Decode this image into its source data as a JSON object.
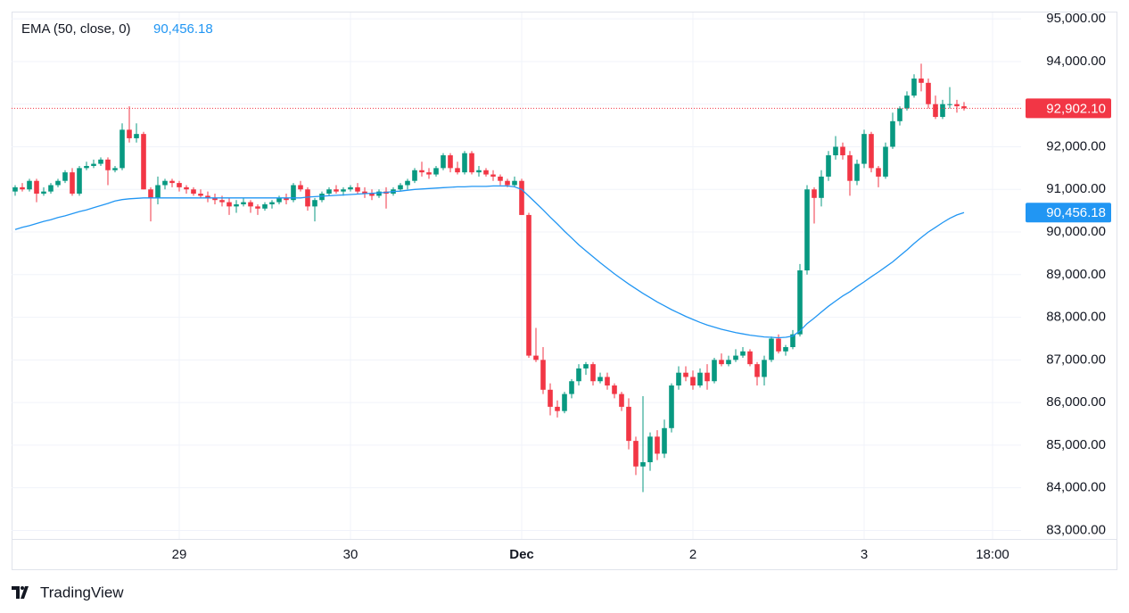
{
  "chart_data": {
    "type": "candlestick",
    "up_color": "#089981",
    "down_color": "#f23645",
    "ylim": [
      82800,
      95150
    ],
    "yticks": [
      {
        "value": 83000,
        "label": "83,000.00"
      },
      {
        "value": 84000,
        "label": "84,000.00"
      },
      {
        "value": 85000,
        "label": "85,000.00"
      },
      {
        "value": 86000,
        "label": "86,000.00"
      },
      {
        "value": 87000,
        "label": "87,000.00"
      },
      {
        "value": 88000,
        "label": "88,000.00"
      },
      {
        "value": 89000,
        "label": "89,000.00"
      },
      {
        "value": 90000,
        "label": "90,000.00"
      },
      {
        "value": 91000,
        "label": "91,000.00"
      },
      {
        "value": 92000,
        "label": "92,000.00"
      },
      {
        "value": 93000,
        "label": "93,000.00"
      },
      {
        "value": 94000,
        "label": "94,000.00"
      },
      {
        "value": 95000,
        "label": "95,000.00"
      }
    ],
    "grid": true,
    "categories": [
      null,
      null,
      null,
      null,
      null,
      null,
      null,
      null,
      null,
      null,
      null,
      null,
      null,
      null,
      null,
      null,
      null,
      null,
      null,
      null,
      null,
      null,
      null,
      "29",
      null,
      null,
      null,
      null,
      null,
      null,
      null,
      null,
      null,
      null,
      null,
      null,
      null,
      null,
      null,
      null,
      null,
      null,
      null,
      null,
      null,
      null,
      null,
      "30",
      null,
      null,
      null,
      null,
      null,
      null,
      null,
      null,
      null,
      null,
      null,
      null,
      null,
      null,
      null,
      null,
      null,
      null,
      null,
      null,
      null,
      null,
      null,
      "Dec",
      null,
      null,
      null,
      null,
      null,
      null,
      null,
      null,
      null,
      null,
      null,
      null,
      null,
      null,
      null,
      null,
      null,
      null,
      null,
      null,
      null,
      null,
      null,
      "2",
      null,
      null,
      null,
      null,
      null,
      null,
      null,
      null,
      null,
      null,
      null,
      null,
      null,
      null,
      null,
      null,
      null,
      null,
      null,
      null,
      null,
      null,
      null,
      "3",
      null,
      null,
      null,
      null,
      null,
      null,
      null,
      null,
      null,
      null,
      null,
      null,
      null,
      null,
      null,
      null,
      null,
      "18:00",
      null,
      null,
      null
    ],
    "ohlc": [
      [
        90950,
        91100,
        90850,
        91050
      ],
      [
        91050,
        91150,
        90950,
        91000
      ],
      [
        91000,
        91250,
        90950,
        91200
      ],
      [
        91200,
        91250,
        90700,
        90900
      ],
      [
        90900,
        91050,
        90850,
        90950
      ],
      [
        90950,
        91150,
        90900,
        91100
      ],
      [
        91100,
        91250,
        91050,
        91200
      ],
      [
        91200,
        91450,
        91150,
        91400
      ],
      [
        91400,
        91500,
        90850,
        90900
      ],
      [
        90900,
        91550,
        90850,
        91500
      ],
      [
        91500,
        91650,
        91450,
        91550
      ],
      [
        91550,
        91700,
        91500,
        91600
      ],
      [
        91600,
        91750,
        91550,
        91700
      ],
      [
        91700,
        91750,
        91100,
        91450
      ],
      [
        91450,
        91550,
        91400,
        91500
      ],
      [
        91500,
        92550,
        91450,
        92400
      ],
      [
        92400,
        92950,
        92100,
        92200
      ],
      [
        92200,
        92550,
        92100,
        92300
      ],
      [
        92300,
        92350,
        91000,
        91000
      ],
      [
        91000,
        91050,
        90250,
        90800
      ],
      [
        90800,
        91300,
        90650,
        91100
      ],
      [
        91100,
        91250,
        91000,
        91200
      ],
      [
        91200,
        91250,
        91050,
        91150
      ],
      [
        91150,
        91200,
        90950,
        91050
      ],
      [
        91050,
        91100,
        90900,
        91000
      ],
      [
        91000,
        91050,
        90850,
        90900
      ],
      [
        90900,
        91000,
        90800,
        90850
      ],
      [
        90850,
        90950,
        90700,
        90800
      ],
      [
        90800,
        90900,
        90650,
        90750
      ],
      [
        90750,
        90850,
        90600,
        90700
      ],
      [
        90700,
        90800,
        90400,
        90600
      ],
      [
        90600,
        90750,
        90450,
        90650
      ],
      [
        90650,
        90800,
        90600,
        90700
      ],
      [
        90700,
        90750,
        90450,
        90600
      ],
      [
        90600,
        90650,
        90400,
        90550
      ],
      [
        90550,
        90700,
        90500,
        90650
      ],
      [
        90650,
        90750,
        90550,
        90700
      ],
      [
        90700,
        90850,
        90650,
        90800
      ],
      [
        90800,
        90900,
        90650,
        90750
      ],
      [
        90750,
        91150,
        90700,
        91100
      ],
      [
        91100,
        91200,
        90950,
        91000
      ],
      [
        91000,
        91050,
        90500,
        90600
      ],
      [
        90600,
        90800,
        90250,
        90750
      ],
      [
        90750,
        90950,
        90700,
        90900
      ],
      [
        90900,
        91050,
        90850,
        91000
      ],
      [
        91000,
        91100,
        90900,
        90950
      ],
      [
        90950,
        91050,
        90850,
        91000
      ],
      [
        91000,
        91100,
        90950,
        91050
      ],
      [
        91050,
        91150,
        90900,
        90950
      ],
      [
        90950,
        91050,
        90800,
        90900
      ],
      [
        90900,
        91000,
        90750,
        90850
      ],
      [
        90850,
        91000,
        90800,
        90950
      ],
      [
        90950,
        91050,
        90550,
        90900
      ],
      [
        90900,
        91050,
        90850,
        91000
      ],
      [
        91000,
        91150,
        90950,
        91100
      ],
      [
        91100,
        91250,
        91000,
        91200
      ],
      [
        91200,
        91500,
        91150,
        91450
      ],
      [
        91450,
        91650,
        91300,
        91400
      ],
      [
        91400,
        91500,
        91250,
        91350
      ],
      [
        91350,
        91550,
        91300,
        91500
      ],
      [
        91500,
        91850,
        91450,
        91800
      ],
      [
        91800,
        91850,
        91400,
        91500
      ],
      [
        91500,
        91650,
        91350,
        91400
      ],
      [
        91400,
        91900,
        91350,
        91850
      ],
      [
        91850,
        91900,
        91350,
        91400
      ],
      [
        91400,
        91550,
        91300,
        91450
      ],
      [
        91450,
        91500,
        91300,
        91350
      ],
      [
        91350,
        91450,
        91200,
        91300
      ],
      [
        91300,
        91350,
        91100,
        91200
      ],
      [
        91200,
        91250,
        91050,
        91100
      ],
      [
        91100,
        91300,
        91050,
        91200
      ],
      [
        91200,
        91250,
        90400,
        90400
      ],
      [
        90400,
        90450,
        87050,
        87100
      ],
      [
        87100,
        87750,
        86950,
        87000
      ],
      [
        87000,
        87300,
        86200,
        86300
      ],
      [
        86300,
        86450,
        85700,
        85900
      ],
      [
        85900,
        86050,
        85650,
        85800
      ],
      [
        85800,
        86250,
        85750,
        86200
      ],
      [
        86200,
        86550,
        86100,
        86500
      ],
      [
        86500,
        86900,
        86400,
        86800
      ],
      [
        86800,
        86950,
        86650,
        86900
      ],
      [
        86900,
        86950,
        86400,
        86500
      ],
      [
        86500,
        86700,
        86450,
        86600
      ],
      [
        86600,
        86700,
        86300,
        86400
      ],
      [
        86400,
        86450,
        86100,
        86200
      ],
      [
        86200,
        86250,
        85800,
        85900
      ],
      [
        85900,
        86100,
        84900,
        85100
      ],
      [
        85100,
        85200,
        84300,
        84500
      ],
      [
        84500,
        86150,
        83900,
        84600
      ],
      [
        84600,
        85300,
        84400,
        85200
      ],
      [
        85200,
        85350,
        84650,
        84800
      ],
      [
        84800,
        85600,
        84700,
        85400
      ],
      [
        85400,
        86450,
        85300,
        86400
      ],
      [
        86400,
        86850,
        86300,
        86700
      ],
      [
        86700,
        86850,
        86500,
        86600
      ],
      [
        86600,
        86750,
        86300,
        86400
      ],
      [
        86400,
        86800,
        86350,
        86700
      ],
      [
        86700,
        86900,
        86300,
        86500
      ],
      [
        86500,
        87050,
        86450,
        87000
      ],
      [
        87000,
        87150,
        86850,
        86900
      ],
      [
        86900,
        87100,
        86850,
        87000
      ],
      [
        87000,
        87250,
        86950,
        87100
      ],
      [
        87100,
        87300,
        87050,
        87200
      ],
      [
        87200,
        87250,
        86850,
        86900
      ],
      [
        86900,
        86950,
        86400,
        86600
      ],
      [
        86600,
        87100,
        86400,
        87000
      ],
      [
        87000,
        87550,
        86950,
        87500
      ],
      [
        87500,
        87600,
        87150,
        87200
      ],
      [
        87200,
        87350,
        87100,
        87300
      ],
      [
        87300,
        87700,
        87250,
        87600
      ],
      [
        87600,
        89250,
        87550,
        89100
      ],
      [
        89100,
        91100,
        89000,
        91000
      ],
      [
        91000,
        91050,
        90200,
        90800
      ],
      [
        90800,
        91450,
        90600,
        91300
      ],
      [
        91300,
        91900,
        91200,
        91800
      ],
      [
        91800,
        92250,
        91700,
        92000
      ],
      [
        92000,
        92100,
        91700,
        91800
      ],
      [
        91800,
        91900,
        90850,
        91200
      ],
      [
        91200,
        91700,
        91100,
        91600
      ],
      [
        91600,
        92400,
        91500,
        92300
      ],
      [
        92300,
        92350,
        91400,
        91500
      ],
      [
        91500,
        91550,
        91050,
        91300
      ],
      [
        91300,
        92100,
        91250,
        92000
      ],
      [
        92000,
        92800,
        91950,
        92600
      ],
      [
        92600,
        92950,
        92500,
        92900
      ],
      [
        92900,
        93300,
        92850,
        93200
      ],
      [
        93200,
        93700,
        93150,
        93600
      ],
      [
        93600,
        93950,
        93300,
        93500
      ],
      [
        93500,
        93600,
        92900,
        93000
      ],
      [
        93000,
        93200,
        92650,
        92700
      ],
      [
        92700,
        93100,
        92650,
        93000
      ],
      [
        93000,
        93400,
        92900,
        93000
      ],
      [
        93000,
        93100,
        92800,
        92950
      ],
      [
        92950,
        93050,
        92850,
        92902.1
      ],
      null,
      null,
      null,
      null,
      null,
      null,
      null
    ],
    "last_price": 92902.1,
    "last_price_label": "92,902.10",
    "ema": {
      "name": "EMA (50, close, 0)",
      "color": "#2196f3",
      "last_label": "90,456.18",
      "values": [
        90060,
        90110,
        90150,
        90200,
        90250,
        90290,
        90340,
        90380,
        90430,
        90480,
        90520,
        90570,
        90620,
        90670,
        90730,
        90760,
        90780,
        90790,
        90800,
        90800,
        90800,
        90800,
        90800,
        90800,
        90800,
        90800,
        90800,
        90800,
        90800,
        90800,
        90800,
        90800,
        90800,
        90800,
        90800,
        90800,
        90800,
        90800,
        90800,
        90800,
        90800,
        90820,
        90830,
        90840,
        90850,
        90860,
        90870,
        90880,
        90890,
        90900,
        90910,
        90920,
        90930,
        90950,
        90960,
        90980,
        91000,
        91010,
        91020,
        91030,
        91040,
        91050,
        91060,
        91060,
        91070,
        91070,
        91070,
        91080,
        91080,
        91080,
        91060,
        91000,
        90840,
        90680,
        90520,
        90350,
        90190,
        90020,
        89860,
        89700,
        89560,
        89420,
        89280,
        89150,
        89020,
        88900,
        88780,
        88670,
        88560,
        88460,
        88360,
        88270,
        88180,
        88100,
        88020,
        87950,
        87880,
        87820,
        87770,
        87720,
        87680,
        87640,
        87610,
        87580,
        87560,
        87540,
        87530,
        87520,
        87530,
        87560,
        87680,
        87850,
        87980,
        88120,
        88260,
        88380,
        88500,
        88600,
        88720,
        88830,
        88950,
        89060,
        89180,
        89300,
        89440,
        89580,
        89730,
        89870,
        90000,
        90110,
        90220,
        90320,
        90400,
        90456.18,
        null,
        null,
        null,
        null,
        null,
        null,
        null
      ]
    }
  },
  "brand": "TradingView"
}
